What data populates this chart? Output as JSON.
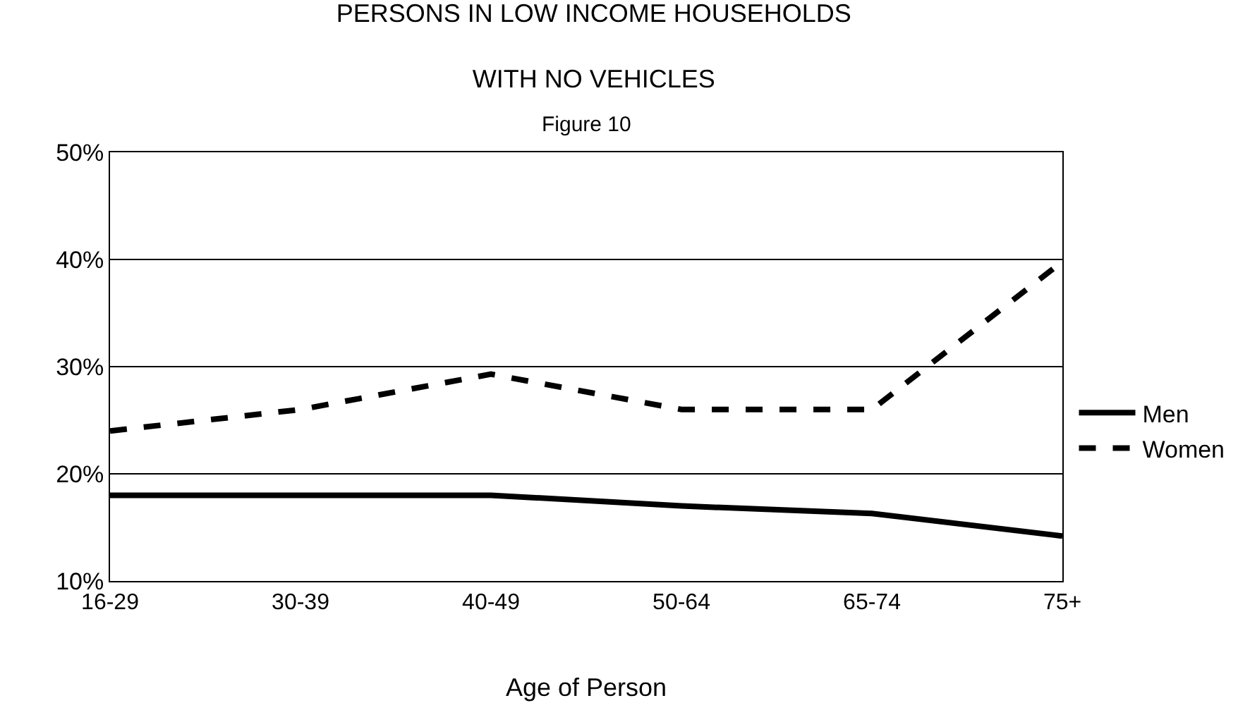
{
  "chart_data": {
    "type": "line",
    "title": "PERSONS IN LOW INCOME HOUSEHOLDS\nWITH NO VEHICLES",
    "subtitle": "Figure 10",
    "xlabel": "Age of Person",
    "categories": [
      "16-29",
      "30-39",
      "40-49",
      "50-64",
      "65-74",
      "75+"
    ],
    "series": [
      {
        "name": "Men",
        "color": "#000000",
        "line_style": "solid",
        "values": [
          18,
          18,
          18,
          17,
          16.3,
          14.2
        ]
      },
      {
        "name": "Women",
        "color": "#000000",
        "line_style": "dashed",
        "values": [
          24,
          26,
          29.3,
          26,
          26,
          39.8
        ]
      }
    ],
    "ylim": [
      10,
      50
    ],
    "yticks": [
      {
        "value": 10,
        "label": "10%"
      },
      {
        "value": 20,
        "label": "20%"
      },
      {
        "value": 30,
        "label": "30%"
      },
      {
        "value": 40,
        "label": "40%"
      },
      {
        "value": 50,
        "label": "50%"
      }
    ],
    "grid": "y",
    "legend": "right",
    "marker": "none"
  }
}
